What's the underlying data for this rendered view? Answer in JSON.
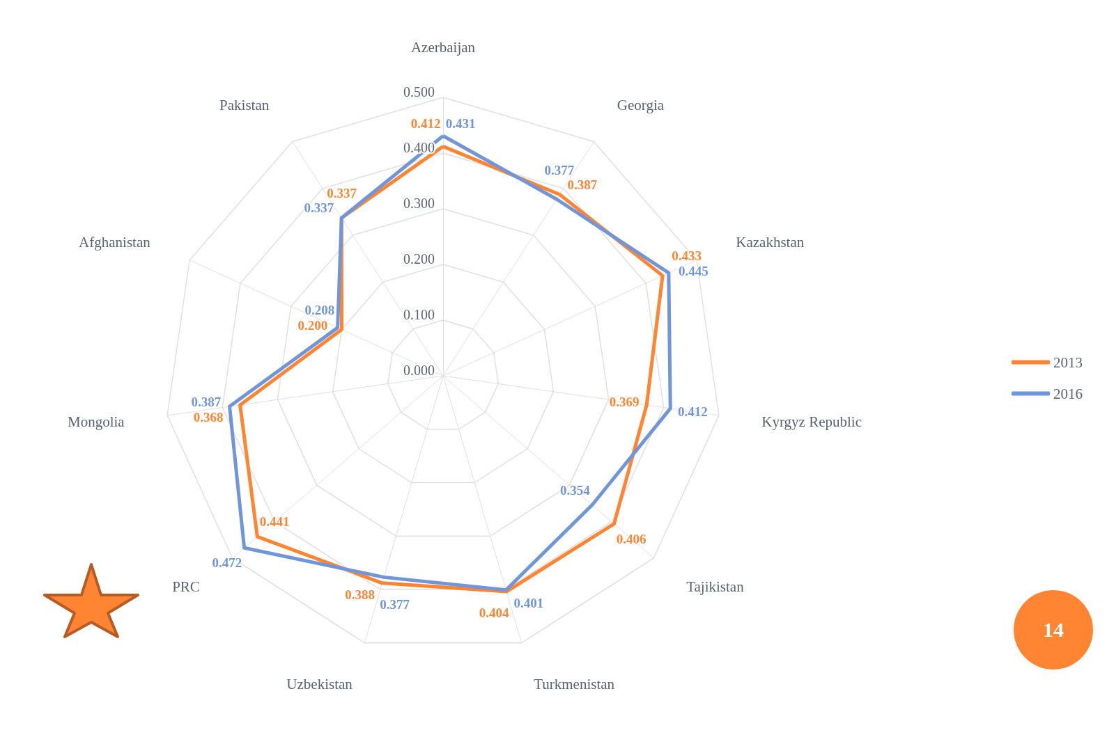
{
  "chart_data": {
    "type": "radar",
    "categories": [
      "Azerbaijan",
      "Georgia",
      "Kazakhstan",
      "Kyrgyz Republic",
      "Tajikistan",
      "Turkmenistan",
      "Uzbekistan",
      "PRC",
      "Mongolia",
      "Afghanistan",
      "Pakistan"
    ],
    "series": [
      {
        "name": "2013",
        "color": "#ff8533",
        "values": [
          0.412,
          0.387,
          0.433,
          0.369,
          0.406,
          0.404,
          0.388,
          0.441,
          0.368,
          0.2,
          0.337
        ],
        "value_labels": [
          "0.412",
          "0.387",
          "0.433",
          "0.369",
          "0.406",
          "0.404",
          "0.388",
          "0.441",
          "0.368",
          "0.200",
          "0.337"
        ]
      },
      {
        "name": "2016",
        "color": "#7096d9",
        "values": [
          0.431,
          0.377,
          0.445,
          0.412,
          0.354,
          0.401,
          0.377,
          0.472,
          0.387,
          0.208,
          0.337
        ],
        "value_labels": [
          "0.431",
          "0.377",
          "0.445",
          "0.412",
          "0.354",
          "0.401",
          "0.377",
          "0.472",
          "0.387",
          "0.208",
          "0.337"
        ]
      }
    ],
    "ylim": [
      0,
      0.5
    ],
    "yticks": [
      {
        "value": 0,
        "label": "0.000"
      },
      {
        "value": 0.1,
        "label": "0.100"
      },
      {
        "value": 0.2,
        "label": "0.200"
      },
      {
        "value": 0.3,
        "label": "0.300"
      },
      {
        "value": 0.4,
        "label": "0.400"
      },
      {
        "value": 0.5,
        "label": "0.500"
      }
    ],
    "grid": true,
    "legend": "right",
    "marker": "none",
    "line_style": "solid",
    "annotations": [
      "14"
    ]
  }
}
